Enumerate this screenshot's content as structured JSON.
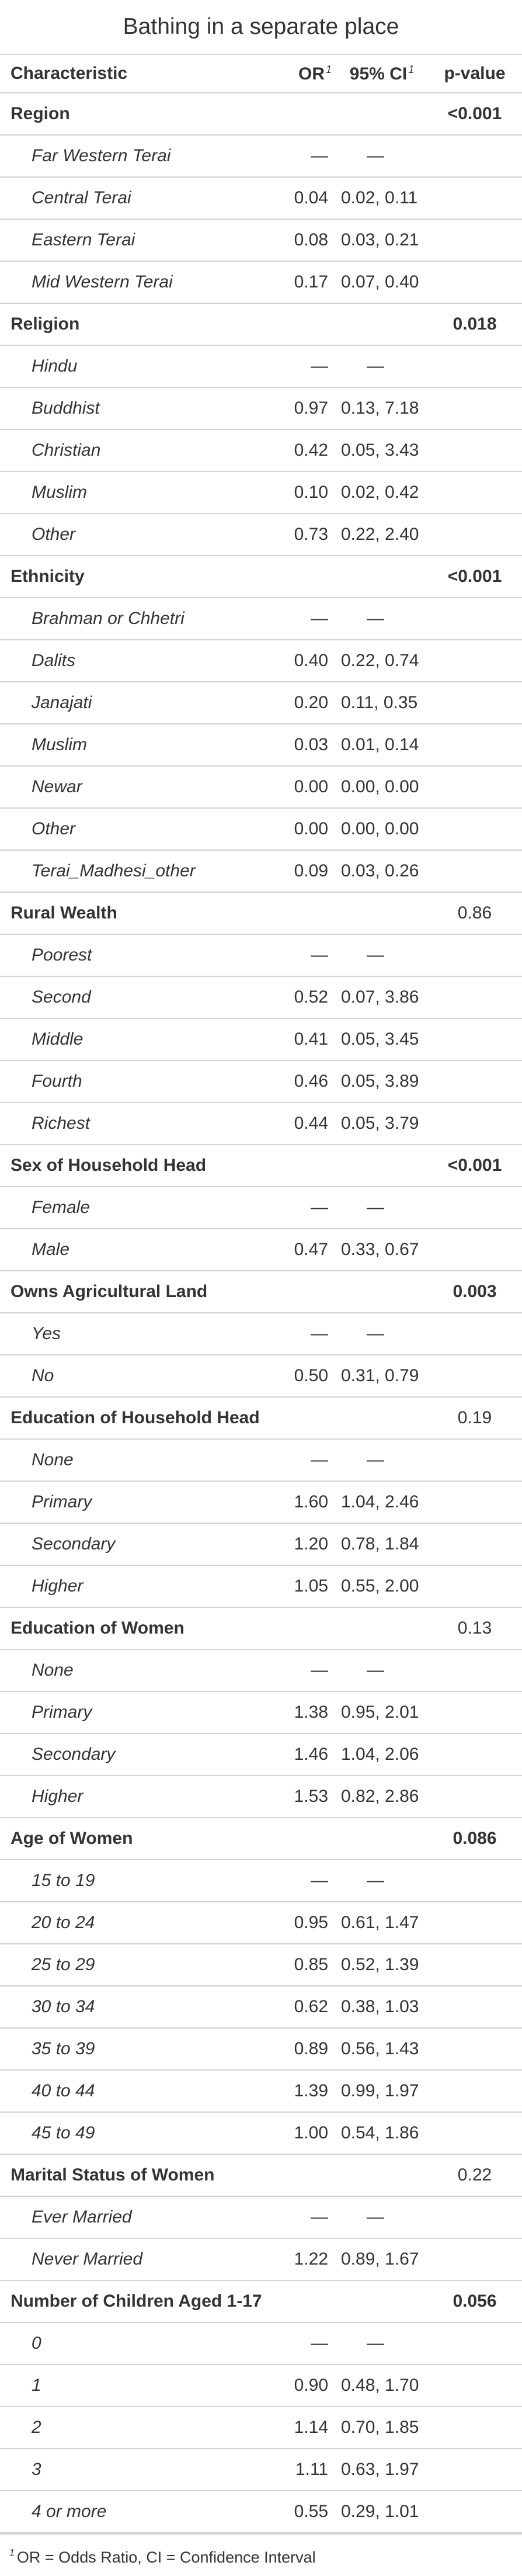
{
  "title": "Bathing in a separate place",
  "columns": {
    "characteristic": "Characteristic",
    "or": "OR",
    "ci": "95% CI",
    "pvalue": "p-value",
    "footnote_mark": "1"
  },
  "footnote": {
    "mark": "1",
    "text": "OR = Odds Ratio, CI = Confidence Interval"
  },
  "groups": [
    {
      "label": "Region",
      "pvalue": "<0.001",
      "significant": true,
      "levels": [
        {
          "label": "Far Western Terai",
          "or": "—",
          "ci": "—"
        },
        {
          "label": "Central Terai",
          "or": "0.04",
          "ci": "0.02, 0.11"
        },
        {
          "label": "Eastern Terai",
          "or": "0.08",
          "ci": "0.03, 0.21"
        },
        {
          "label": "Mid Western Terai",
          "or": "0.17",
          "ci": "0.07, 0.40"
        }
      ]
    },
    {
      "label": "Religion",
      "pvalue": "0.018",
      "significant": true,
      "levels": [
        {
          "label": "Hindu",
          "or": "—",
          "ci": "—"
        },
        {
          "label": "Buddhist",
          "or": "0.97",
          "ci": "0.13, 7.18"
        },
        {
          "label": "Christian",
          "or": "0.42",
          "ci": "0.05, 3.43"
        },
        {
          "label": "Muslim",
          "or": "0.10",
          "ci": "0.02, 0.42"
        },
        {
          "label": "Other",
          "or": "0.73",
          "ci": "0.22, 2.40"
        }
      ]
    },
    {
      "label": "Ethnicity",
      "pvalue": "<0.001",
      "significant": true,
      "levels": [
        {
          "label": "Brahman or Chhetri",
          "or": "—",
          "ci": "—"
        },
        {
          "label": "Dalits",
          "or": "0.40",
          "ci": "0.22, 0.74"
        },
        {
          "label": "Janajati",
          "or": "0.20",
          "ci": "0.11, 0.35"
        },
        {
          "label": "Muslim",
          "or": "0.03",
          "ci": "0.01, 0.14"
        },
        {
          "label": "Newar",
          "or": "0.00",
          "ci": "0.00, 0.00"
        },
        {
          "label": "Other",
          "or": "0.00",
          "ci": "0.00, 0.00"
        },
        {
          "label": "Terai_Madhesi_other",
          "or": "0.09",
          "ci": "0.03, 0.26"
        }
      ]
    },
    {
      "label": "Rural Wealth",
      "pvalue": "0.86",
      "significant": false,
      "levels": [
        {
          "label": "Poorest",
          "or": "—",
          "ci": "—"
        },
        {
          "label": "Second",
          "or": "0.52",
          "ci": "0.07, 3.86"
        },
        {
          "label": "Middle",
          "or": "0.41",
          "ci": "0.05, 3.45"
        },
        {
          "label": "Fourth",
          "or": "0.46",
          "ci": "0.05, 3.89"
        },
        {
          "label": "Richest",
          "or": "0.44",
          "ci": "0.05, 3.79"
        }
      ]
    },
    {
      "label": "Sex of Household Head",
      "pvalue": "<0.001",
      "significant": true,
      "levels": [
        {
          "label": "Female",
          "or": "—",
          "ci": "—"
        },
        {
          "label": "Male",
          "or": "0.47",
          "ci": "0.33, 0.67"
        }
      ]
    },
    {
      "label": "Owns Agricultural Land",
      "pvalue": "0.003",
      "significant": true,
      "levels": [
        {
          "label": "Yes",
          "or": "—",
          "ci": "—"
        },
        {
          "label": "No",
          "or": "0.50",
          "ci": "0.31, 0.79"
        }
      ]
    },
    {
      "label": "Education of Household Head",
      "pvalue": "0.19",
      "significant": false,
      "levels": [
        {
          "label": "None",
          "or": "—",
          "ci": "—"
        },
        {
          "label": "Primary",
          "or": "1.60",
          "ci": "1.04, 2.46"
        },
        {
          "label": "Secondary",
          "or": "1.20",
          "ci": "0.78, 1.84"
        },
        {
          "label": "Higher",
          "or": "1.05",
          "ci": "0.55, 2.00"
        }
      ]
    },
    {
      "label": "Education of Women",
      "pvalue": "0.13",
      "significant": false,
      "levels": [
        {
          "label": "None",
          "or": "—",
          "ci": "—"
        },
        {
          "label": "Primary",
          "or": "1.38",
          "ci": "0.95, 2.01"
        },
        {
          "label": "Secondary",
          "or": "1.46",
          "ci": "1.04, 2.06"
        },
        {
          "label": "Higher",
          "or": "1.53",
          "ci": "0.82, 2.86"
        }
      ]
    },
    {
      "label": "Age of Women",
      "pvalue": "0.086",
      "significant": true,
      "levels": [
        {
          "label": "15 to 19",
          "or": "—",
          "ci": "—"
        },
        {
          "label": "20 to 24",
          "or": "0.95",
          "ci": "0.61, 1.47"
        },
        {
          "label": "25 to 29",
          "or": "0.85",
          "ci": "0.52, 1.39"
        },
        {
          "label": "30 to 34",
          "or": "0.62",
          "ci": "0.38, 1.03"
        },
        {
          "label": "35 to 39",
          "or": "0.89",
          "ci": "0.56, 1.43"
        },
        {
          "label": "40 to 44",
          "or": "1.39",
          "ci": "0.99, 1.97"
        },
        {
          "label": "45 to 49",
          "or": "1.00",
          "ci": "0.54, 1.86"
        }
      ]
    },
    {
      "label": "Marital Status of Women",
      "pvalue": "0.22",
      "significant": false,
      "levels": [
        {
          "label": "Ever Married",
          "or": "—",
          "ci": "—"
        },
        {
          "label": "Never Married",
          "or": "1.22",
          "ci": "0.89, 1.67"
        }
      ]
    },
    {
      "label": "Number of Children Aged 1-17",
      "pvalue": "0.056",
      "significant": true,
      "levels": [
        {
          "label": "0",
          "or": "—",
          "ci": "—"
        },
        {
          "label": "1",
          "or": "0.90",
          "ci": "0.48, 1.70"
        },
        {
          "label": "2",
          "or": "1.14",
          "ci": "0.70, 1.85"
        },
        {
          "label": "3",
          "or": "1.11",
          "ci": "0.63, 1.97"
        },
        {
          "label": "4 or more",
          "or": "0.55",
          "ci": "0.29, 1.01"
        }
      ]
    }
  ]
}
